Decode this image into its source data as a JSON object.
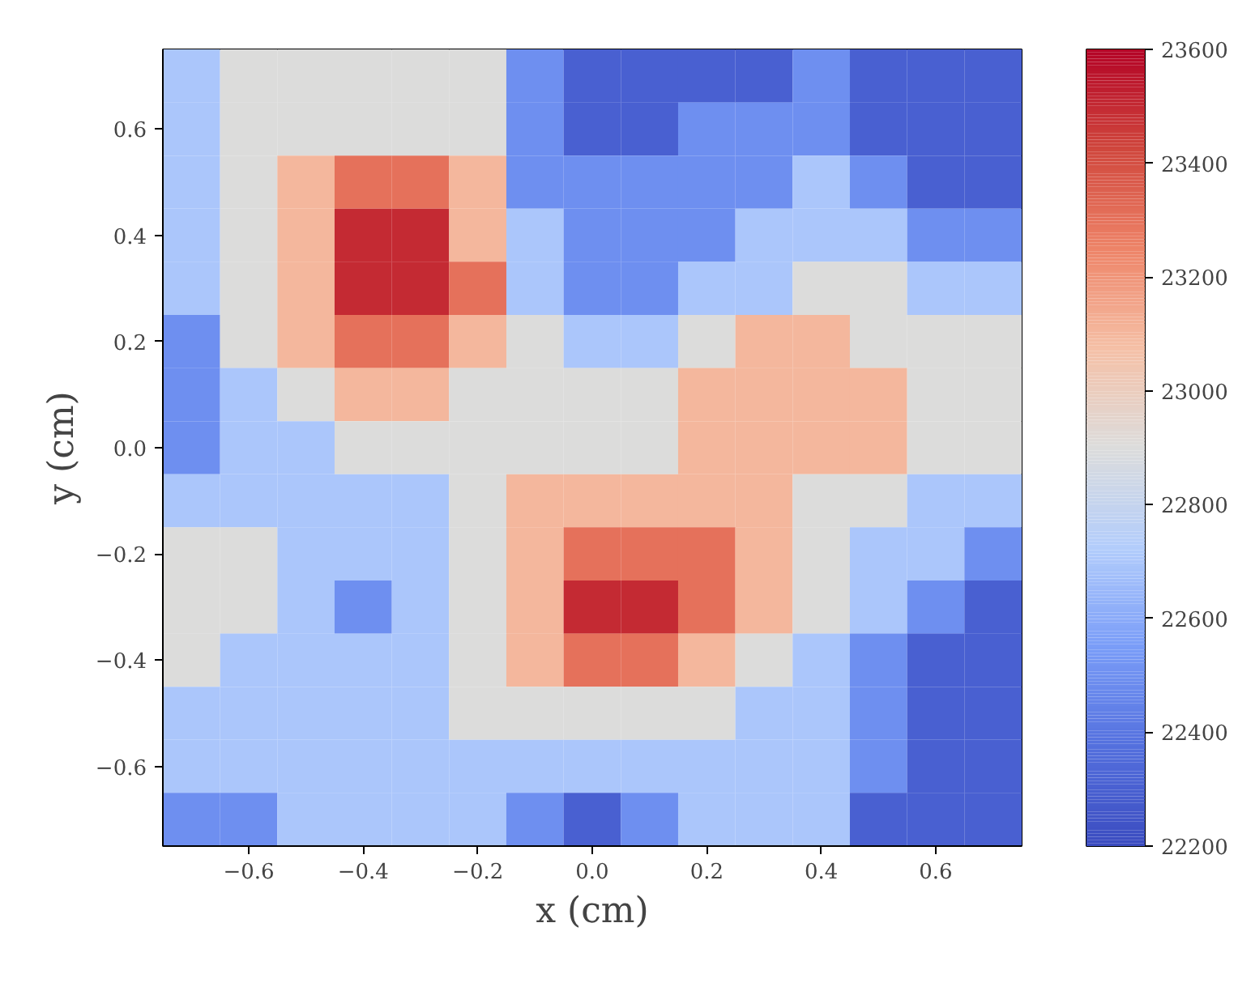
{
  "chart_data": {
    "type": "scatter",
    "marker": "square",
    "xlabel": "x (cm)",
    "ylabel": "y (cm)",
    "xlim": [
      -0.75,
      0.75
    ],
    "ylim": [
      -0.75,
      0.75
    ],
    "xticks": [
      {
        "value": -0.6,
        "label": "−0.6"
      },
      {
        "value": -0.4,
        "label": "−0.4"
      },
      {
        "value": -0.2,
        "label": "−0.2"
      },
      {
        "value": 0,
        "label": "0.0"
      },
      {
        "value": 0.2,
        "label": "0.2"
      },
      {
        "value": 0.4,
        "label": "0.4"
      },
      {
        "value": 0.6,
        "label": "0.6"
      }
    ],
    "yticks": [
      {
        "value": -0.6,
        "label": "−0.6"
      },
      {
        "value": -0.4,
        "label": "−0.4"
      },
      {
        "value": -0.2,
        "label": "−0.2"
      },
      {
        "value": 0,
        "label": "0.0"
      },
      {
        "value": 0.2,
        "label": "0.2"
      },
      {
        "value": 0.4,
        "label": "0.4"
      },
      {
        "value": 0.6,
        "label": "0.6"
      }
    ],
    "clim": [
      22200,
      23600
    ],
    "cticks": [
      22200,
      22400,
      22600,
      22800,
      23000,
      23200,
      23400,
      23600
    ],
    "x": [
      -0.7,
      -0.6,
      -0.5,
      -0.4,
      -0.3,
      -0.2,
      -0.1,
      0,
      0.1,
      0.2,
      0.3,
      0.4,
      0.5,
      0.6,
      0.7,
      -0.7,
      -0.6,
      -0.5,
      -0.4,
      -0.3,
      -0.2,
      -0.1,
      0,
      0.1,
      0.2,
      0.3,
      0.4,
      0.5,
      0.6,
      0.7,
      -0.7,
      -0.6,
      -0.5,
      -0.4,
      -0.3,
      -0.2,
      -0.1,
      0,
      0.1,
      0.2,
      0.3,
      0.4,
      0.5,
      0.6,
      0.7,
      -0.7,
      -0.6,
      -0.5,
      -0.4,
      -0.3,
      -0.2,
      -0.1,
      0,
      0.1,
      0.2,
      0.3,
      0.4,
      0.5,
      0.6,
      0.7,
      -0.7,
      -0.6,
      -0.5,
      -0.4,
      -0.3,
      -0.2,
      -0.1,
      0,
      0.1,
      0.2,
      0.3,
      0.4,
      0.5,
      0.6,
      0.7,
      -0.7,
      -0.6,
      -0.5,
      -0.4,
      -0.3,
      -0.2,
      -0.1,
      0,
      0.1,
      0.2,
      0.3,
      0.4,
      0.5,
      0.6,
      0.7,
      -0.7,
      -0.6,
      -0.5,
      -0.4,
      -0.3,
      -0.2,
      -0.1,
      0,
      0.1,
      0.2,
      0.3,
      0.4,
      0.5,
      0.6,
      0.7,
      -0.7,
      -0.6,
      -0.5,
      -0.4,
      -0.3,
      -0.2,
      -0.1,
      0,
      0.1,
      0.2,
      0.3,
      0.4,
      0.5,
      0.6,
      0.7,
      -0.7,
      -0.6,
      -0.5,
      -0.4,
      -0.3,
      -0.2,
      -0.1,
      0,
      0.1,
      0.2,
      0.3,
      0.4,
      0.5,
      0.6,
      0.7,
      -0.7,
      -0.6,
      -0.5,
      -0.4,
      -0.3,
      -0.2,
      -0.1,
      0,
      0.1,
      0.2,
      0.3,
      0.4,
      0.5,
      0.6,
      0.7,
      -0.7,
      -0.6,
      -0.5,
      -0.4,
      -0.3,
      -0.2,
      -0.1,
      0,
      0.1,
      0.2,
      0.3,
      0.4,
      0.5,
      0.6,
      0.7,
      -0.7,
      -0.6,
      -0.5,
      -0.4,
      -0.3,
      -0.2,
      -0.1,
      0,
      0.1,
      0.2,
      0.3,
      0.4,
      0.5,
      0.6,
      0.7,
      -0.7,
      -0.6,
      -0.5,
      -0.4,
      -0.3,
      -0.2,
      -0.1,
      0,
      0.1,
      0.2,
      0.3,
      0.4,
      0.5,
      0.6,
      0.7,
      -0.7,
      -0.6,
      -0.5,
      -0.4,
      -0.3,
      -0.2,
      -0.1,
      0,
      0.1,
      0.2,
      0.3,
      0.4,
      0.5,
      0.6,
      0.7,
      -0.7,
      -0.6,
      -0.5,
      -0.4,
      -0.3,
      -0.2,
      -0.1,
      0,
      0.1,
      0.2,
      0.3,
      0.4,
      0.5,
      0.6,
      0.7
    ],
    "values": [
      0.7,
      0.7,
      0.7,
      0.7,
      0.7,
      0.7,
      0.7,
      0.7,
      0.7,
      0.7,
      0.7,
      0.7,
      0.7,
      0.7,
      0.7,
      0.6,
      0.6,
      0.6,
      0.6,
      0.6,
      0.6,
      0.6,
      0.6,
      0.6,
      0.6,
      0.6,
      0.6,
      0.6,
      0.6,
      0.6,
      0.5,
      0.5,
      0.5,
      0.5,
      0.5,
      0.5,
      0.5,
      0.5,
      0.5,
      0.5,
      0.5,
      0.5,
      0.5,
      0.5,
      0.5,
      0.4,
      0.4,
      0.4,
      0.4,
      0.4,
      0.4,
      0.4,
      0.4,
      0.4,
      0.4,
      0.4,
      0.4,
      0.4,
      0.4,
      0.4,
      0.3,
      0.3,
      0.3,
      0.3,
      0.3,
      0.3,
      0.3,
      0.3,
      0.3,
      0.3,
      0.3,
      0.3,
      0.3,
      0.3,
      0.3,
      0.2,
      0.2,
      0.2,
      0.2,
      0.2,
      0.2,
      0.2,
      0.2,
      0.2,
      0.2,
      0.2,
      0.2,
      0.2,
      0.2,
      0.2,
      0.1,
      0.1,
      0.1,
      0.1,
      0.1,
      0.1,
      0.1,
      0.1,
      0.1,
      0.1,
      0.1,
      0.1,
      0.1,
      0.1,
      0.1,
      0,
      0,
      0,
      0,
      0,
      0,
      0,
      0,
      0,
      0,
      0,
      0,
      0,
      0,
      0,
      -0.1,
      -0.1,
      -0.1,
      -0.1,
      -0.1,
      -0.1,
      -0.1,
      -0.1,
      -0.1,
      -0.1,
      -0.1,
      -0.1,
      -0.1,
      -0.1,
      -0.1,
      -0.2,
      -0.2,
      -0.2,
      -0.2,
      -0.2,
      -0.2,
      -0.2,
      -0.2,
      -0.2,
      -0.2,
      -0.2,
      -0.2,
      -0.2,
      -0.2,
      -0.2,
      -0.3,
      -0.3,
      -0.3,
      -0.3,
      -0.3,
      -0.3,
      -0.3,
      -0.3,
      -0.3,
      -0.3,
      -0.3,
      -0.3,
      -0.3,
      -0.3,
      -0.3,
      -0.4,
      -0.4,
      -0.4,
      -0.4,
      -0.4,
      -0.4,
      -0.4,
      -0.4,
      -0.4,
      -0.4,
      -0.4,
      -0.4,
      -0.4,
      -0.4,
      -0.4,
      -0.5,
      -0.5,
      -0.5,
      -0.5,
      -0.5,
      -0.5,
      -0.5,
      -0.5,
      -0.5,
      -0.5,
      -0.5,
      -0.5,
      -0.5,
      -0.5,
      -0.5,
      -0.6,
      -0.6,
      -0.6,
      -0.6,
      -0.6,
      -0.6,
      -0.6,
      -0.6,
      -0.6,
      -0.6,
      -0.6,
      -0.6,
      -0.6,
      -0.6,
      -0.6,
      -0.7,
      -0.7,
      -0.7,
      -0.7,
      -0.7,
      -0.7,
      -0.7,
      -0.7,
      -0.7,
      -0.7,
      -0.7,
      -0.7,
      -0.7,
      -0.7,
      -0.7
    ],
    "cvalues": [
      22700,
      22900,
      22900,
      22900,
      22900,
      22900,
      22500,
      22300,
      22300,
      22300,
      22300,
      22500,
      22300,
      22300,
      22300,
      22700,
      22900,
      22900,
      22900,
      22900,
      22900,
      22500,
      22300,
      22300,
      22500,
      22500,
      22500,
      22300,
      22300,
      22300,
      22700,
      22900,
      23100,
      23300,
      23300,
      23100,
      22500,
      22500,
      22500,
      22500,
      22500,
      22700,
      22500,
      22300,
      22300,
      22700,
      22900,
      23100,
      23500,
      23500,
      23100,
      22700,
      22500,
      22500,
      22500,
      22700,
      22700,
      22700,
      22500,
      22500,
      22700,
      22900,
      23100,
      23500,
      23500,
      23300,
      22700,
      22500,
      22500,
      22700,
      22700,
      22900,
      22900,
      22700,
      22700,
      22500,
      22900,
      23100,
      23300,
      23300,
      23100,
      22900,
      22700,
      22700,
      22900,
      23100,
      23100,
      22900,
      22900,
      22900,
      22500,
      22700,
      22900,
      23100,
      23100,
      22900,
      22900,
      22900,
      22900,
      23100,
      23100,
      23100,
      23100,
      22900,
      22900,
      22500,
      22700,
      22700,
      22900,
      22900,
      22900,
      22900,
      22900,
      22900,
      23100,
      23100,
      23100,
      23100,
      22900,
      22900,
      22700,
      22700,
      22700,
      22700,
      22700,
      22900,
      23100,
      23100,
      23100,
      23100,
      23100,
      22900,
      22900,
      22700,
      22700,
      22900,
      22900,
      22700,
      22700,
      22700,
      22900,
      23100,
      23300,
      23300,
      23300,
      23100,
      22900,
      22700,
      22700,
      22500,
      22900,
      22900,
      22700,
      22500,
      22700,
      22900,
      23100,
      23500,
      23500,
      23300,
      23100,
      22900,
      22700,
      22500,
      22300,
      22900,
      22700,
      22700,
      22700,
      22700,
      22900,
      23100,
      23300,
      23300,
      23100,
      22900,
      22700,
      22500,
      22300,
      22300,
      22700,
      22700,
      22700,
      22700,
      22700,
      22900,
      22900,
      22900,
      22900,
      22900,
      22700,
      22700,
      22500,
      22300,
      22300,
      22700,
      22700,
      22700,
      22700,
      22700,
      22700,
      22700,
      22700,
      22700,
      22700,
      22700,
      22700,
      22500,
      22300,
      22300,
      22500,
      22500,
      22700,
      22700,
      22700,
      22700,
      22500,
      22300,
      22500,
      22700,
      22700,
      22700,
      22300,
      22300,
      22300
    ]
  }
}
